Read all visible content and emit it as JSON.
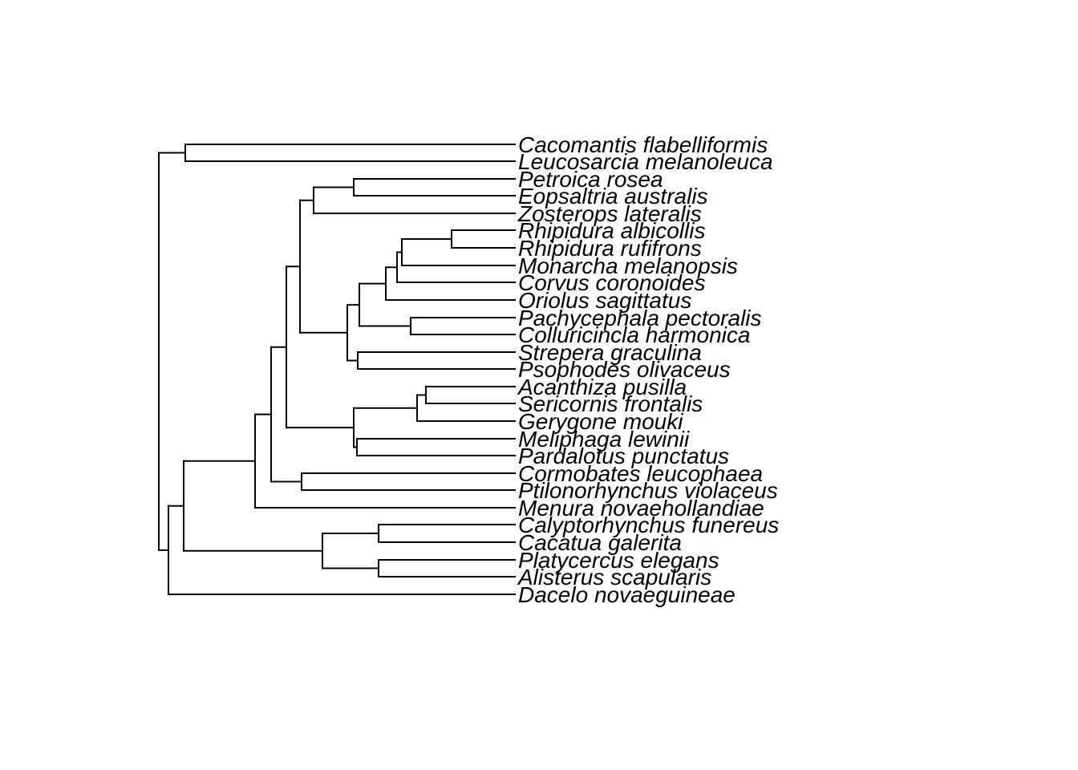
{
  "tree": {
    "tips": [
      "Cacomantis flabelliformis",
      "Leucosarcia melanoleuca",
      "Petroica rosea",
      "Eopsaltria australis",
      "Zosterops lateralis",
      "Rhipidura albicollis",
      "Rhipidura rufifrons",
      "Monarcha melanopsis",
      "Corvus coronoides",
      "Oriolus sagittatus",
      "Pachycephala pectoralis",
      "Colluricincla harmonica",
      "Strepera graculina",
      "Psophodes olivaceus",
      "Acanthiza pusilla",
      "Sericornis frontalis",
      "Gerygone mouki",
      "Meliphaga lewinii",
      "Pardalotus punctatus",
      "Cormobates leucophaea",
      "Ptilonorhynchus violaceus",
      "Menura novaehollandiae",
      "Calyptorhynchus funereus",
      "Cacatua galerita",
      "Platycercus elegans",
      "Alisterus scapularis",
      "Dacelo novaeguineae"
    ],
    "newick": "((Cacomantis flabelliformis,Leucosarcia melanoleuca),((((((Petroica rosea,Eopsaltria australis),Zosterops lateralis),(((((Rhipidura albicollis,Rhipidura rufifrons),Monarcha melanopsis),Corvus coronoides),Oriolus sagittatus),(Pachycephala pectoralis,Colluricincla harmonica)),(Strepera graculina,Psophodes olivaceus))),(((Acanthiza pusilla,Sericornis frontalis),Gerygone mouki),(Meliphaga lewinii,Pardalotus punctatus))),(Cormobates leucophaea,Ptilonorhynchus violaceus)),Menura novaehollandiae),((Calyptorhynchus funereus,Cacatua galerita),(Platycercus elegans,Alisterus scapularis))),Dacelo novaeguineae))"
  }
}
